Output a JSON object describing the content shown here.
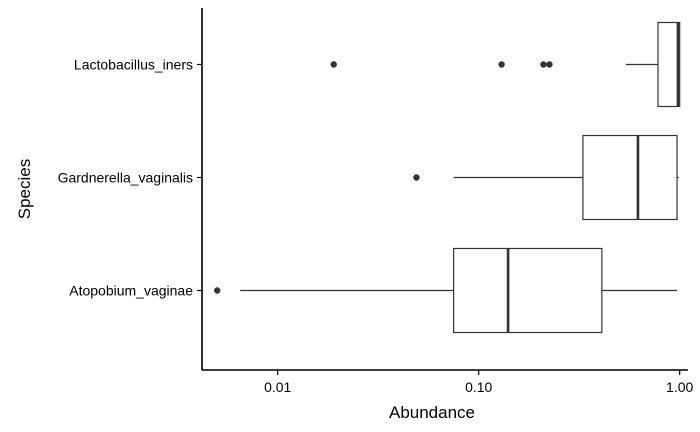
{
  "chart_data": {
    "type": "boxplot",
    "orientation": "horizontal",
    "xlabel": "Abundance",
    "ylabel": "Species",
    "x_scale": "log10",
    "xlim": [
      0.0042,
      1.1
    ],
    "x_ticks": [
      0.01,
      0.1,
      1.0
    ],
    "x_tick_labels": [
      "0.01",
      "0.10",
      "1.00"
    ],
    "grid": false,
    "series": [
      {
        "name": "Lactobacillus_iners",
        "whisker_low": 0.54,
        "q1": 0.78,
        "median": 0.98,
        "q3": 1.0,
        "whisker_high": 1.0,
        "outliers": [
          0.019,
          0.13,
          0.21,
          0.225
        ]
      },
      {
        "name": "Gardnerella_vaginalis",
        "whisker_low": 0.075,
        "q1": 0.33,
        "median": 0.62,
        "q3": 0.97,
        "whisker_high": 0.99,
        "outliers": [
          0.049
        ]
      },
      {
        "name": "Atopobium_vaginae",
        "whisker_low": 0.0065,
        "q1": 0.075,
        "median": 0.14,
        "q3": 0.41,
        "whisker_high": 0.97,
        "outliers": [
          0.005
        ]
      }
    ],
    "colors": {
      "box_fill": "#ffffff",
      "line": "#333333",
      "axis": "#000000",
      "point": "#333333"
    }
  }
}
